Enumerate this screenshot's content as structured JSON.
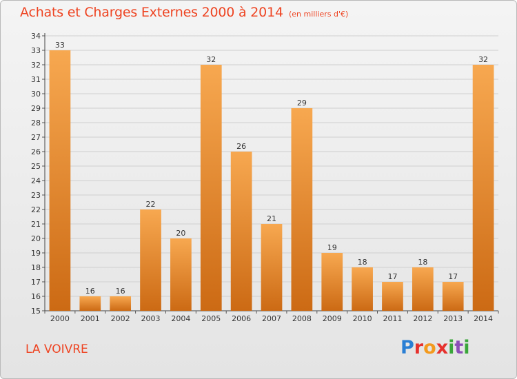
{
  "header": {
    "title": "Achats et Charges Externes 2000 à 2014",
    "subtitle": "(en milliers d'€)"
  },
  "footer": {
    "commune": "LA VOIVRE",
    "logo_text": "Proxiti"
  },
  "chart_data": {
    "type": "bar",
    "title": "Achats et Charges Externes 2000 à 2014",
    "subtitle": "(en milliers d'€)",
    "categories": [
      "2000",
      "2001",
      "2002",
      "2003",
      "2004",
      "2005",
      "2006",
      "2007",
      "2008",
      "2009",
      "2010",
      "2011",
      "2012",
      "2013",
      "2014"
    ],
    "values": [
      33,
      16,
      16,
      22,
      20,
      32,
      26,
      21,
      29,
      19,
      18,
      17,
      18,
      17,
      32
    ],
    "ylim": [
      15,
      34
    ],
    "yticks": [
      15,
      16,
      17,
      18,
      19,
      20,
      21,
      22,
      23,
      24,
      25,
      26,
      27,
      28,
      29,
      30,
      31,
      32,
      33,
      34
    ],
    "grid": true,
    "bar_color": "#f0912e",
    "bar_color_dark": "#cc6a14",
    "grid_color": "#cfcfcf",
    "legend": "none"
  }
}
